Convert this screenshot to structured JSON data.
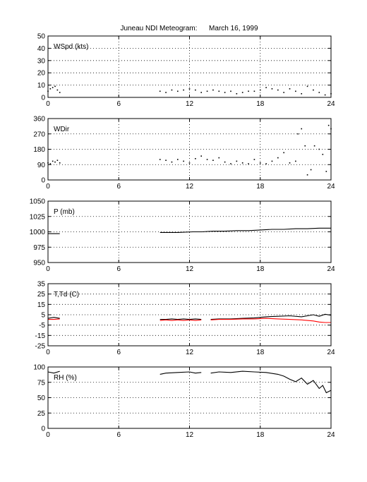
{
  "title": "Juneau NDI Meteogram:      March 16, 1999",
  "chart_data": [
    {
      "type": "scatter",
      "label": "WSpd (kts)",
      "xlim": [
        0,
        24
      ],
      "ylim": [
        0,
        50
      ],
      "xticks": [
        "0",
        "6",
        "12",
        "18",
        "24"
      ],
      "yticks": [
        "0",
        "10",
        "20",
        "30",
        "40",
        "50"
      ],
      "grid": true,
      "series": [
        {
          "color": "#000000",
          "x": [
            0.0,
            0.2,
            0.4,
            0.6,
            0.8,
            1.0,
            9.5,
            10.0,
            10.5,
            11.0,
            11.5,
            12.0,
            12.5,
            13.0,
            13.5,
            14.0,
            14.5,
            15.0,
            15.5,
            16.0,
            16.5,
            17.0,
            17.5,
            18.0,
            18.5,
            19.0,
            19.5,
            20.0,
            20.5,
            21.0,
            21.5,
            22.0,
            22.5,
            23.0,
            23.5,
            24.0
          ],
          "y": [
            5,
            7,
            8,
            9,
            6,
            4,
            5,
            4,
            6,
            5,
            6,
            7,
            6,
            4,
            5,
            6,
            5,
            4,
            5,
            3,
            4,
            5,
            5,
            6,
            8,
            7,
            6,
            4,
            7,
            5,
            3,
            9,
            6,
            4,
            2,
            3
          ]
        }
      ]
    },
    {
      "type": "scatter",
      "label": "WDir",
      "xlim": [
        0,
        24
      ],
      "ylim": [
        0,
        360
      ],
      "xticks": [
        "0",
        "6",
        "12",
        "18",
        "24"
      ],
      "yticks": [
        "0",
        "90",
        "180",
        "270",
        "360"
      ],
      "grid": true,
      "series": [
        {
          "color": "#000000",
          "x": [
            0.0,
            0.2,
            0.4,
            0.6,
            0.8,
            1.0,
            9.5,
            10.0,
            10.5,
            11.0,
            11.5,
            12.0,
            12.5,
            13.0,
            13.5,
            14.0,
            14.5,
            15.0,
            15.5,
            16.0,
            16.5,
            17.0,
            17.5,
            18.0,
            18.5,
            19.0,
            19.5,
            20.0,
            20.5,
            21.0,
            21.2,
            21.5,
            21.8,
            22.0,
            22.3,
            22.6,
            23.0,
            23.3,
            23.6,
            23.8,
            24.0
          ],
          "y": [
            100,
            95,
            110,
            105,
            115,
            100,
            120,
            115,
            105,
            120,
            110,
            100,
            125,
            140,
            120,
            115,
            130,
            105,
            95,
            110,
            100,
            95,
            120,
            100,
            95,
            110,
            130,
            160,
            100,
            110,
            270,
            300,
            200,
            30,
            60,
            200,
            180,
            150,
            50,
            320,
            300
          ]
        }
      ]
    },
    {
      "type": "line",
      "label": "P (mb)",
      "xlim": [
        0,
        24
      ],
      "ylim": [
        950,
        1050
      ],
      "xticks": [
        "0",
        "6",
        "12",
        "18",
        "24"
      ],
      "yticks": [
        "950",
        "975",
        "1000",
        "1025",
        "1050"
      ],
      "grid": true,
      "series": [
        {
          "color": "#000000",
          "x": [
            0,
            0.5,
            1.0
          ],
          "y": [
            997,
            997,
            997
          ]
        },
        {
          "color": "#000000",
          "x": [
            9.5,
            11,
            12.3,
            13,
            14,
            15,
            16,
            17,
            18,
            19,
            20,
            21,
            22,
            23,
            24
          ],
          "y": [
            999,
            999,
            1000,
            1000,
            1001,
            1001,
            1002,
            1002,
            1003,
            1004,
            1004,
            1005,
            1005,
            1006,
            1006
          ]
        }
      ]
    },
    {
      "type": "line",
      "label": "T,Td (C)",
      "xlim": [
        0,
        24
      ],
      "ylim": [
        -25,
        35
      ],
      "xticks": [
        "0",
        "6",
        "12",
        "18",
        "24"
      ],
      "yticks": [
        "-25",
        "-15",
        "-5",
        "5",
        "15",
        "25",
        "35"
      ],
      "grid": true,
      "series": [
        {
          "name": "T",
          "color": "#000000",
          "x": [
            0,
            0.5,
            1.0
          ],
          "y": [
            1.5,
            2.5,
            1.5
          ]
        },
        {
          "name": "Td",
          "color": "#ff0000",
          "x": [
            0,
            0.5,
            1.0
          ],
          "y": [
            0.5,
            0.5,
            1
          ]
        },
        {
          "name": "T",
          "color": "#000000",
          "x": [
            9.5,
            10,
            10.5,
            11,
            11.5,
            12,
            12.5,
            13.0
          ],
          "y": [
            0.5,
            0.5,
            1,
            0.5,
            1,
            0.5,
            1,
            0.5
          ]
        },
        {
          "name": "Td",
          "color": "#ff0000",
          "x": [
            9.5,
            10,
            10.5,
            11,
            11.5,
            12,
            12.5,
            13.0
          ],
          "y": [
            -0.5,
            0,
            -0.5,
            0,
            -0.5,
            0,
            -0.5,
            0
          ]
        },
        {
          "name": "T",
          "color": "#000000",
          "x": [
            13.8,
            14.5,
            15.5,
            16.5,
            17.5,
            18.5,
            19.5,
            20.5,
            21.5,
            22.5,
            23.0,
            23.5,
            24.0
          ],
          "y": [
            0.5,
            1,
            1,
            1.5,
            2,
            3,
            3.5,
            4,
            3,
            5,
            3.5,
            5.5,
            4.5
          ]
        },
        {
          "name": "Td",
          "color": "#ff0000",
          "x": [
            13.8,
            14.5,
            15.5,
            16.5,
            17.5,
            18.5,
            19.5,
            20.5,
            21.5,
            22.5,
            23.0,
            23.5,
            24.0
          ],
          "y": [
            0,
            0.5,
            0.5,
            1,
            1,
            1.5,
            1,
            0.5,
            0,
            -1,
            -2,
            -2.5,
            -2.5
          ]
        }
      ]
    },
    {
      "type": "line",
      "label": "RH (%)",
      "xlim": [
        0,
        24
      ],
      "ylim": [
        0,
        100
      ],
      "xticks": [
        "0",
        "6",
        "12",
        "18",
        "24"
      ],
      "yticks": [
        "0",
        "25",
        "50",
        "75",
        "100"
      ],
      "grid": true,
      "series": [
        {
          "color": "#000000",
          "x": [
            0,
            0.5,
            1.0
          ],
          "y": [
            92,
            90,
            93
          ]
        },
        {
          "color": "#000000",
          "x": [
            9.5,
            10,
            11,
            12,
            12.5,
            13.0
          ],
          "y": [
            88,
            90,
            91,
            92,
            90,
            91
          ]
        },
        {
          "color": "#000000",
          "x": [
            13.8,
            14.5,
            15.5,
            16.5,
            17.5,
            18.5,
            19.5,
            20.0,
            20.5,
            21.0,
            21.5,
            22.0,
            22.5,
            23.0,
            23.3,
            23.6,
            24.0
          ],
          "y": [
            90,
            92,
            91,
            93,
            92,
            91,
            88,
            85,
            80,
            76,
            82,
            72,
            78,
            65,
            70,
            58,
            62
          ]
        }
      ]
    }
  ]
}
